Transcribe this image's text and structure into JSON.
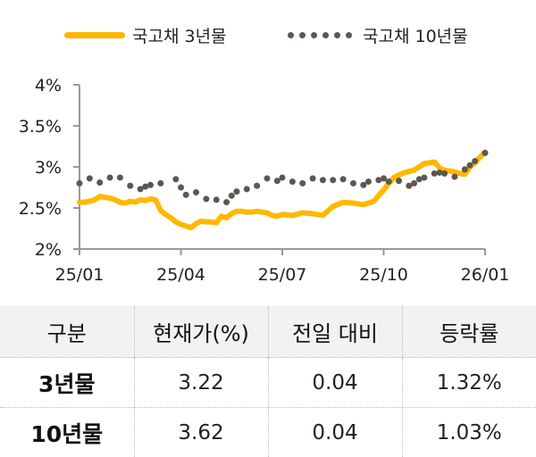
{
  "legend": [
    {
      "label": "국고채 3년물",
      "style": "line",
      "color": "#FFB800"
    },
    {
      "label": "국고채 10년물",
      "style": "dots",
      "color": "#5E5750"
    }
  ],
  "chart_data": {
    "type": "line",
    "title": "",
    "xlabel": "",
    "ylabel": "",
    "x_ticks": [
      "25/01",
      "25/04",
      "25/07",
      "25/10",
      "26/01"
    ],
    "y_ticks": [
      "2%",
      "2.5%",
      "3%",
      "3.5%",
      "4%"
    ],
    "ylim": [
      2,
      4
    ],
    "grid": false,
    "legend_position": "top",
    "series": [
      {
        "name": "국고채 3년물",
        "color": "#FFB800",
        "style": "solid",
        "x": [
          0.0,
          0.05,
          0.1,
          0.15,
          0.2,
          0.25,
          0.3,
          0.35,
          0.4,
          0.45,
          0.5,
          0.55,
          0.6,
          0.65,
          0.7,
          0.75,
          0.8,
          0.85,
          0.9,
          0.95,
          1.0,
          1.05,
          1.1,
          1.15,
          1.2,
          1.25,
          1.3,
          1.35,
          1.4,
          1.45,
          1.5,
          1.55,
          1.6,
          1.65,
          1.7,
          1.75,
          1.8,
          1.85,
          1.9,
          1.95,
          2.0,
          2.1,
          2.2,
          2.3,
          2.4,
          2.5,
          2.6,
          2.7,
          2.8,
          2.9,
          3.0,
          3.05,
          3.1,
          3.2,
          3.3,
          3.4,
          3.5,
          3.55,
          3.6,
          3.65,
          3.7,
          3.75,
          3.8,
          3.85,
          3.9,
          3.95,
          4.0
        ],
        "values": [
          2.57,
          2.57,
          2.58,
          2.6,
          2.64,
          2.63,
          2.62,
          2.6,
          2.57,
          2.56,
          2.58,
          2.57,
          2.6,
          2.59,
          2.61,
          2.6,
          2.47,
          2.42,
          2.38,
          2.33,
          2.3,
          2.28,
          2.26,
          2.31,
          2.34,
          2.33,
          2.33,
          2.32,
          2.4,
          2.38,
          2.43,
          2.46,
          2.46,
          2.45,
          2.45,
          2.46,
          2.45,
          2.44,
          2.41,
          2.4,
          2.42,
          2.41,
          2.44,
          2.43,
          2.41,
          2.52,
          2.57,
          2.56,
          2.54,
          2.58,
          2.72,
          2.8,
          2.87,
          2.93,
          2.96,
          3.04,
          3.06,
          2.99,
          2.96,
          2.95,
          2.94,
          2.92,
          2.91,
          3.0,
          3.05,
          3.12,
          3.18
        ]
      },
      {
        "name": "국고채 10년물",
        "color": "#5E5750",
        "style": "dotted",
        "x": [
          0.0,
          0.1,
          0.2,
          0.3,
          0.4,
          0.5,
          0.6,
          0.65,
          0.7,
          0.8,
          0.95,
          1.0,
          1.05,
          1.15,
          1.25,
          1.35,
          1.45,
          1.5,
          1.55,
          1.65,
          1.75,
          1.85,
          1.95,
          2.0,
          2.1,
          2.2,
          2.3,
          2.4,
          2.5,
          2.6,
          2.7,
          2.8,
          2.85,
          2.95,
          3.0,
          3.05,
          3.15,
          3.25,
          3.3,
          3.35,
          3.4,
          3.5,
          3.55,
          3.6,
          3.7,
          3.8,
          3.85,
          3.9,
          4.0
        ],
        "values": [
          2.8,
          2.86,
          2.81,
          2.87,
          2.87,
          2.77,
          2.73,
          2.76,
          2.78,
          2.8,
          2.85,
          2.75,
          2.66,
          2.69,
          2.61,
          2.6,
          2.57,
          2.65,
          2.7,
          2.73,
          2.77,
          2.86,
          2.83,
          2.87,
          2.82,
          2.8,
          2.86,
          2.84,
          2.84,
          2.85,
          2.8,
          2.78,
          2.82,
          2.84,
          2.86,
          2.82,
          2.83,
          2.77,
          2.8,
          2.85,
          2.87,
          2.92,
          2.93,
          2.92,
          2.88,
          2.97,
          3.02,
          3.07,
          3.17
        ]
      }
    ]
  },
  "table": {
    "headers": [
      "구분",
      "현재가(%)",
      "전일 대비",
      "등락률"
    ],
    "rows": [
      [
        "3년물",
        "3.22",
        "0.04",
        "1.32%"
      ],
      [
        "10년물",
        "3.62",
        "0.04",
        "1.03%"
      ]
    ]
  }
}
